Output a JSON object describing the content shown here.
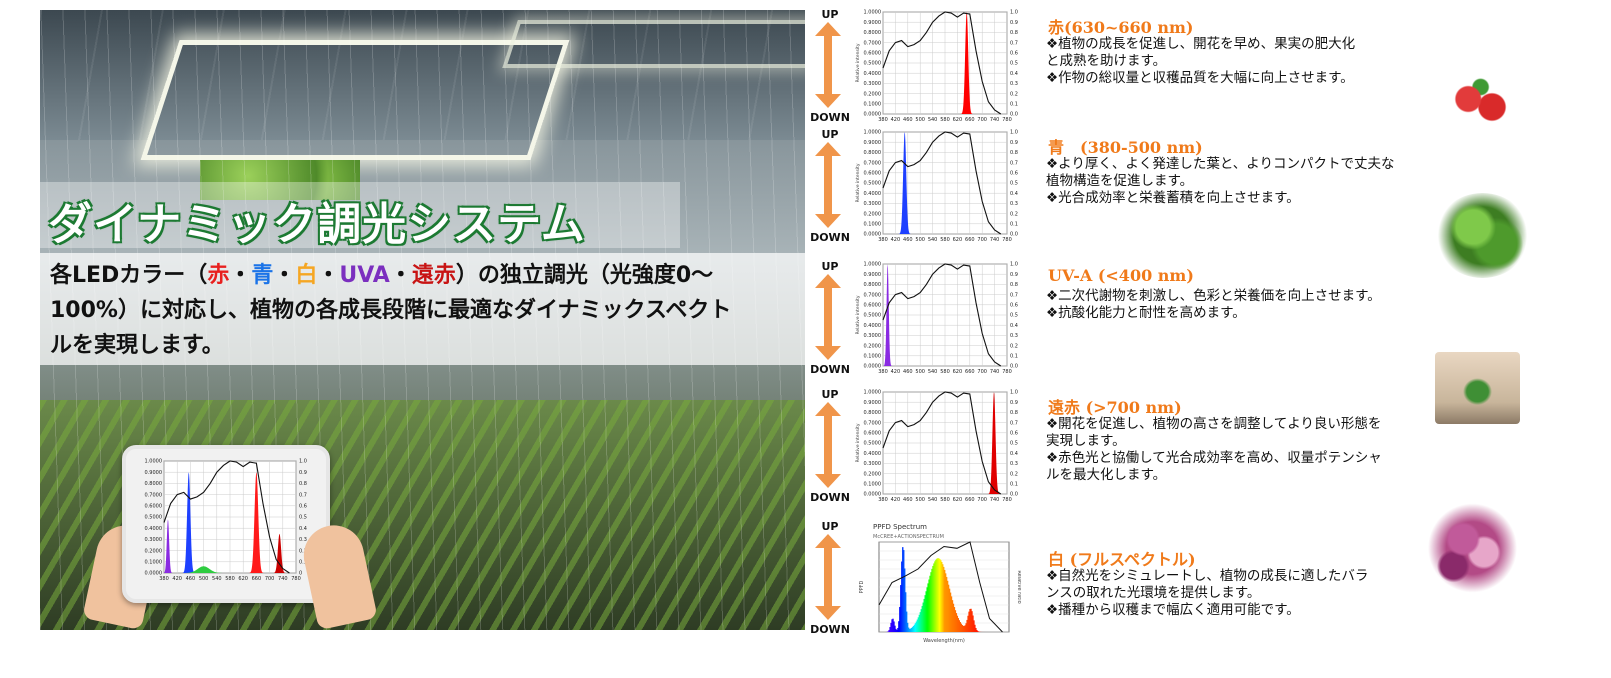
{
  "hero": {
    "title": "ダイナミック調光システム",
    "desc": {
      "prefix": "各LEDカラー（",
      "c1": "赤",
      "sep1": "・",
      "c2": "青",
      "sep2": "・",
      "c3": "白",
      "sep3": "・",
      "c4": "UVA",
      "sep4": "・",
      "c5": "遠赤",
      "line1_end": "）の独立調光（光強度0～",
      "line2": "100%）に対応し、植物の各成長段階に最適なダイナミックスペクト",
      "line3": "ルを実現します。"
    }
  },
  "tablet_chart": {
    "yticks": [
      "1.0000",
      "0.9000",
      "0.8000",
      "0.7000",
      "0.6000",
      "0.5000",
      "0.4000",
      "0.3000",
      "0.2000",
      "0.1000",
      "0.0000"
    ],
    "xticks": [
      "380",
      "420",
      "460",
      "500",
      "540",
      "580",
      "620",
      "660",
      "700",
      "740",
      "780"
    ],
    "y2ticks": [
      "1.0",
      "0.9",
      "0.8",
      "0.7",
      "0.6",
      "0.5",
      "0.4",
      "0.3",
      "0.2",
      "0.1",
      "0"
    ]
  },
  "arrow": {
    "up": "UP",
    "down": "DOWN"
  },
  "colors": {
    "arrow": "#f0954a",
    "title": "#f07a1a",
    "red": "#ff0000",
    "blue": "#1e40ff",
    "uva": "#8a2be2"
  },
  "rows": [
    {
      "title": "赤(630~660 nm)",
      "lines": [
        "❖植物の成長を促進し、開花を早め、果実の肥大化",
        "と成熟を助けます。",
        "❖作物の総収量と収穫品質を大幅に向上させます。"
      ],
      "icon": "strawberry-photo"
    },
    {
      "title": "青　(380-500 nm)",
      "lines": [
        "❖より厚く、よく発達した葉と、よりコンパクトで丈夫な",
        "植物構造を促進します。",
        "❖光合成効率と栄養蓄積を向上させます。"
      ],
      "icon": "lettuce-photo"
    },
    {
      "title": "UV-A (<400 nm)",
      "lines": [
        "❖二次代謝物を刺激し、色彩と栄養価を向上させます。",
        "❖抗酸化能力と耐性を高めます。"
      ],
      "icon": "seedling-photo"
    },
    {
      "title": "遠赤 (>700 nm)",
      "lines": [
        "❖開花を促進し、植物の高さを調整してより良い形態を",
        "実現します。",
        "❖赤色光と協働して光合成効率を高め、収量ポテンシャ",
        "ルを最大化します。"
      ],
      "icon": "hyacinth-photo"
    },
    {
      "title": "白 (フルスペクトル)",
      "lines": [
        "❖自然光をシミュレートし、植物の成長に適したバラ",
        "ンスの取れた光環境を提供します。",
        "❖播種から収穫まで幅広く適用可能です。"
      ],
      "icon": "none"
    }
  ],
  "spectra": {
    "yticks": [
      "1.0000",
      "0.9000",
      "0.8000",
      "0.7000",
      "0.6000",
      "0.5000",
      "0.4000",
      "0.3000",
      "0.2000",
      "0.1000",
      "0.0000"
    ],
    "y2ticks": [
      "1.0",
      "0.9",
      "0.8",
      "0.7",
      "0.6",
      "0.5",
      "0.4",
      "0.3",
      "0.2",
      "0.1",
      "0.0"
    ],
    "xticks": [
      "380",
      "420",
      "460",
      "500",
      "540",
      "580",
      "620",
      "660",
      "700",
      "740",
      "780"
    ],
    "ylabel": "Relative intensity",
    "ppfd": {
      "title": "PPFD Spectrum",
      "subtitle": "McCREE+ACTIONSPECTRUM",
      "ylabel": "PPFD",
      "y2label": "Relative ratio",
      "xlabel": "Wavelength(nm)"
    }
  }
}
